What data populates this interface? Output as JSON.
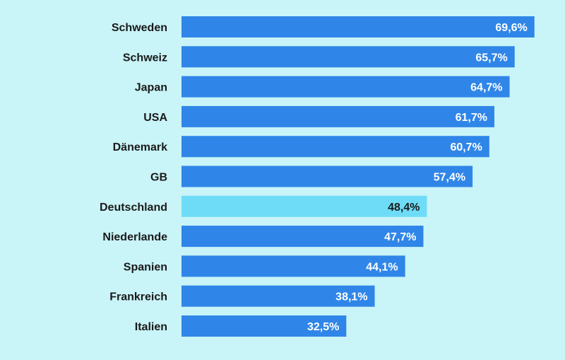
{
  "chart_data": {
    "type": "bar",
    "orientation": "horizontal",
    "categories": [
      "Schweden",
      "Schweiz",
      "Japan",
      "USA",
      "Dänemark",
      "GB",
      "Deutschland",
      "Niederlande",
      "Spanien",
      "Frankreich",
      "Italien"
    ],
    "values": [
      69.6,
      65.7,
      64.7,
      61.7,
      60.7,
      57.4,
      48.4,
      47.7,
      44.1,
      38.1,
      32.5
    ],
    "value_labels": [
      "69,6%",
      "65,7%",
      "64,7%",
      "61,7%",
      "60,7%",
      "57,4%",
      "48,4%",
      "47,7%",
      "44,1%",
      "38,1%",
      "32,5%"
    ],
    "highlighted_category": "Deutschland",
    "xlim": [
      0,
      100
    ],
    "unit": "%",
    "grid": false,
    "legend": "none"
  },
  "colors": {
    "background": "#c9f4f8",
    "bar": "#2f86e8",
    "bar_highlight": "#6fdcf7",
    "label_on_bar": "#ffffff",
    "label_on_highlight": "#1a1a1a",
    "category_text": "#1a1a1a"
  }
}
